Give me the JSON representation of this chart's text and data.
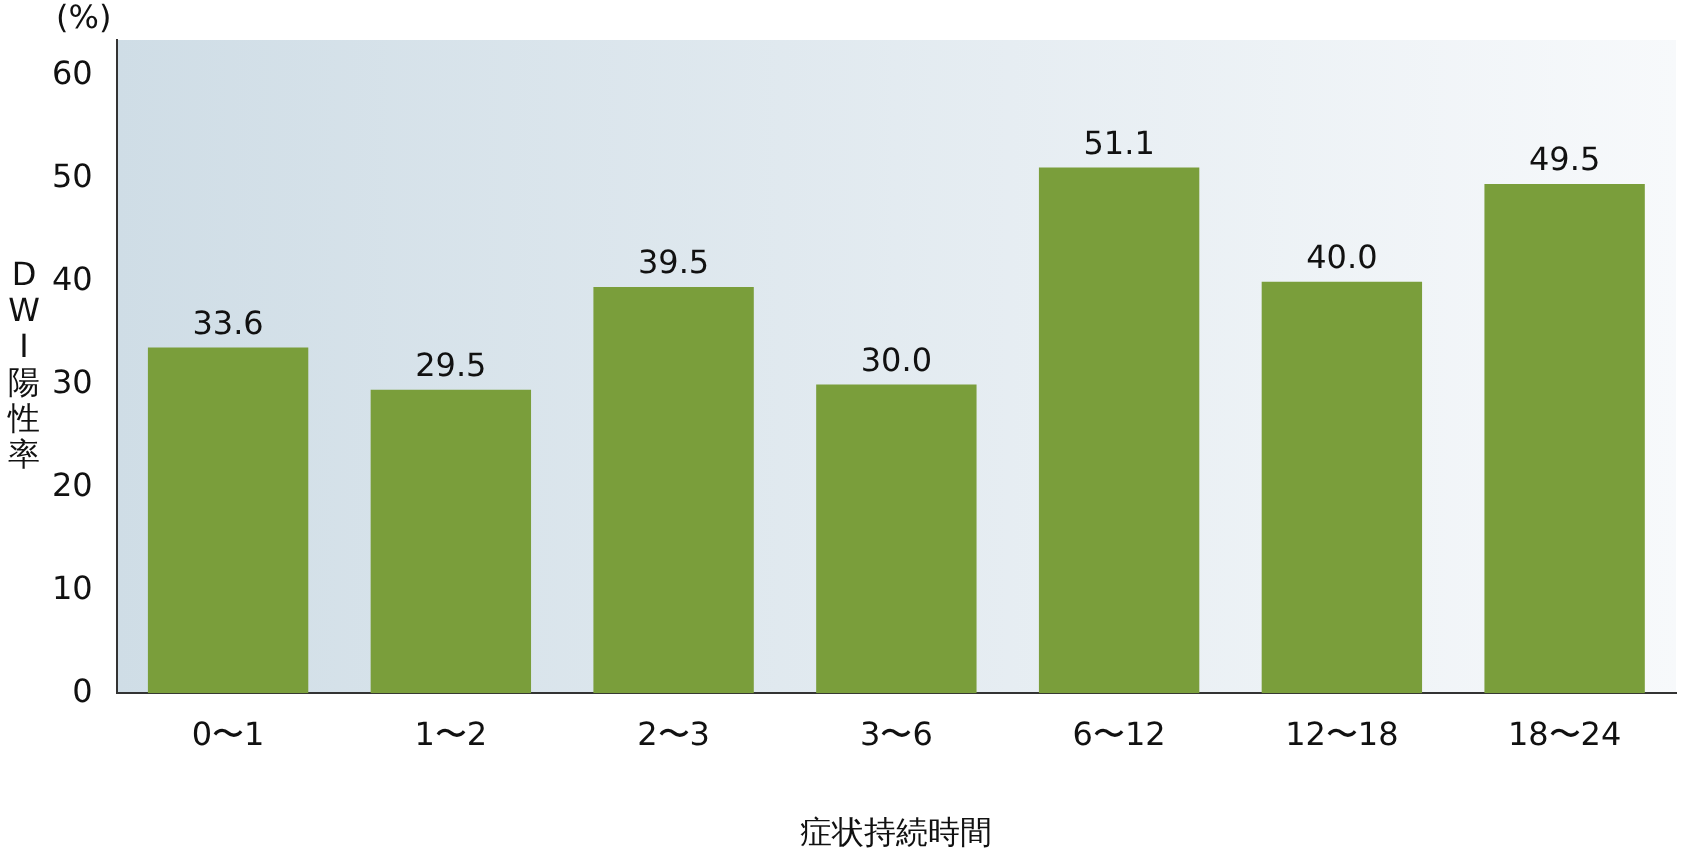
{
  "chart_data": {
    "type": "bar",
    "xlabel": "症状持続時間",
    "ylabel": "DWI陽性率",
    "annotations": [
      "(%)"
    ],
    "categories": [
      "0〜1",
      "1〜2",
      "2〜3",
      "3〜6",
      "6〜12",
      "12〜18",
      "18〜24"
    ],
    "values": [
      33.6,
      29.5,
      39.5,
      30.0,
      51.1,
      40.0,
      49.5
    ],
    "value_labels": [
      "33.6",
      "29.5",
      "39.5",
      "30.0",
      "51.1",
      "40.0",
      "49.5"
    ],
    "color": "#7a9e3b",
    "ylim": [
      0,
      63.5
    ],
    "yticks": [
      0,
      10,
      20,
      30,
      40,
      50,
      60
    ],
    "grid": false,
    "legend": false
  }
}
